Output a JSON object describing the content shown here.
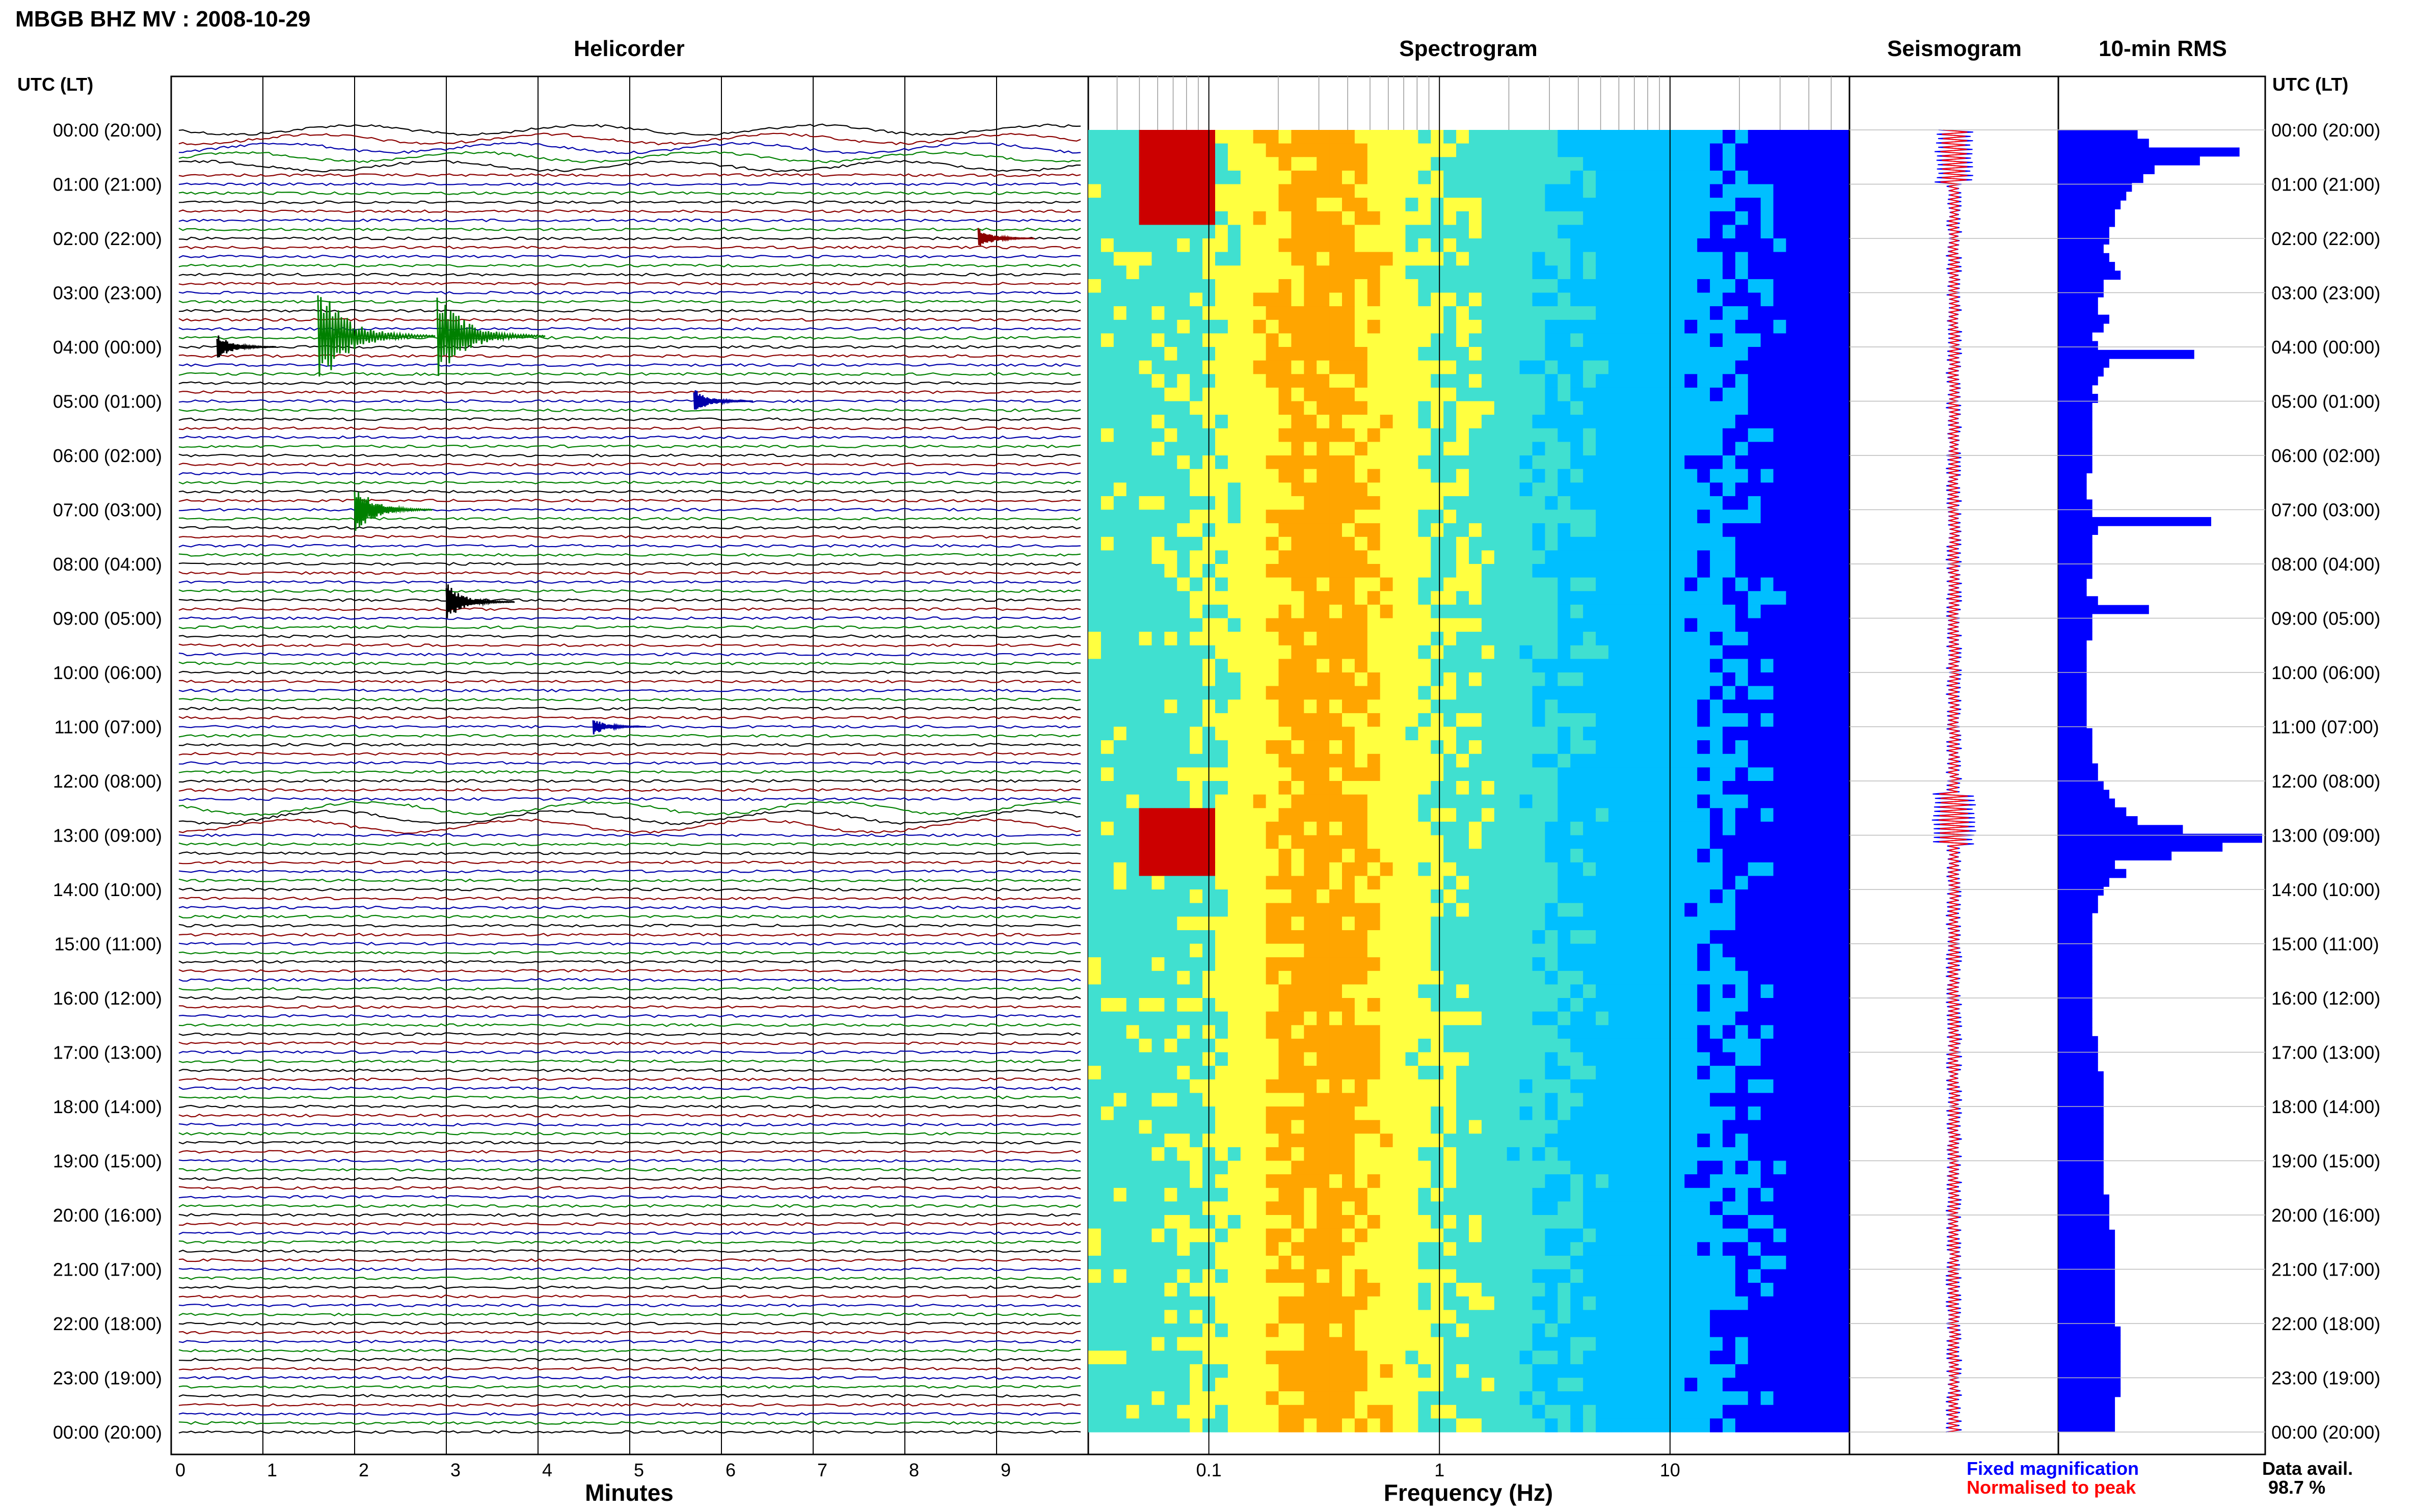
{
  "header": {
    "title": "MBGB BHZ MV : 2008-10-29"
  },
  "panels": {
    "helicorder_title": "Helicorder",
    "spectrogram_title": "Spectrogram",
    "seismogram_title": "Seismogram",
    "rms_title": "10-min RMS"
  },
  "axes": {
    "left_header": "UTC (LT)",
    "right_header": "UTC (LT)",
    "minutes_label": "Minutes",
    "frequency_label": "Frequency (Hz)",
    "time_labels": [
      "00:00 (20:00)",
      "01:00 (21:00)",
      "02:00 (22:00)",
      "03:00 (23:00)",
      "04:00 (00:00)",
      "05:00 (01:00)",
      "06:00 (02:00)",
      "07:00 (03:00)",
      "08:00 (04:00)",
      "09:00 (05:00)",
      "10:00 (06:00)",
      "11:00 (07:00)",
      "12:00 (08:00)",
      "13:00 (09:00)",
      "14:00 (10:00)",
      "15:00 (11:00)",
      "16:00 (12:00)",
      "17:00 (13:00)",
      "18:00 (14:00)",
      "19:00 (15:00)",
      "20:00 (16:00)",
      "21:00 (17:00)",
      "22:00 (18:00)",
      "23:00 (19:00)",
      "00:00 (20:00)"
    ],
    "minute_ticks": [
      "0",
      "1",
      "2",
      "3",
      "4",
      "5",
      "6",
      "7",
      "8",
      "9"
    ],
    "frequency_ticks": [
      "0.1",
      "1",
      "10"
    ]
  },
  "legend": {
    "fixed": "Fixed magnification",
    "normalised": "Normalised to peak",
    "fixed_color": "#0000ff",
    "normalised_color": "#ff0000"
  },
  "availability": {
    "label": "Data avail.",
    "value": "98.7 %"
  },
  "colors": {
    "trace_cycle": [
      "#000000",
      "#8b0000",
      "#0000aa",
      "#008000"
    ],
    "rms_bar": "#0000ff",
    "spectrogram_low": "#00008b",
    "spectrogram_high": "#cc0000"
  },
  "chart_data": [
    {
      "type": "line",
      "title": "Helicorder",
      "xlabel": "Minutes",
      "xlim": [
        0,
        10
      ],
      "traces_per_hour": 6,
      "trace_minutes": 10,
      "events": [
        {
          "hour": 2.0,
          "minute": 8.8,
          "amp": 0.5,
          "color": "#8b0000"
        },
        {
          "hour": 3.8,
          "minute": 1.6,
          "amp": 2.5,
          "color": "#008000"
        },
        {
          "hour": 3.8,
          "minute": 2.9,
          "amp": 2.2,
          "color": "#008000"
        },
        {
          "hour": 4.0,
          "minute": 0.5,
          "amp": 0.6,
          "color": "#000000"
        },
        {
          "hour": 5.0,
          "minute": 5.7,
          "amp": 0.6,
          "color": "#0000aa"
        },
        {
          "hour": 7.0,
          "minute": 2.0,
          "amp": 1.2,
          "color": "#008000"
        },
        {
          "hour": 8.7,
          "minute": 3.0,
          "amp": 0.9,
          "color": "#000000"
        },
        {
          "hour": 11.0,
          "minute": 4.6,
          "amp": 0.4,
          "color": "#0000aa"
        }
      ]
    },
    {
      "type": "heatmap",
      "title": "Spectrogram",
      "xlabel": "Frequency (Hz)",
      "x_scale": "log",
      "xlim": [
        0.03,
        60
      ],
      "ylim_hours": [
        0,
        24
      ]
    },
    {
      "type": "line",
      "title": "Seismogram",
      "series": [
        {
          "name": "Fixed magnification"
        },
        {
          "name": "Normalised to peak"
        }
      ]
    },
    {
      "type": "bar",
      "title": "10-min RMS",
      "orientation": "horizontal",
      "values": [
        14,
        16,
        32,
        25,
        17,
        15,
        13,
        12,
        11,
        10,
        10,
        9,
        9,
        8,
        9,
        10,
        11,
        8,
        8,
        7,
        7,
        9,
        8,
        6,
        7,
        24,
        9,
        8,
        7,
        6,
        7,
        6,
        6,
        6,
        6,
        6,
        6,
        6,
        6,
        5,
        5,
        5,
        6,
        6,
        27,
        7,
        6,
        6,
        6,
        6,
        6,
        5,
        5,
        7,
        16,
        6,
        6,
        6,
        5,
        5,
        5,
        5,
        5,
        5,
        5,
        5,
        5,
        5,
        6,
        6,
        6,
        6,
        7,
        7,
        8,
        9,
        10,
        12,
        14,
        22,
        36,
        29,
        20,
        10,
        12,
        9,
        8,
        7,
        7,
        6,
        6,
        6,
        6,
        6,
        6,
        6,
        6,
        6,
        6,
        6,
        6,
        6,
        6,
        7,
        7,
        7,
        7,
        8,
        8,
        8,
        8,
        8,
        8,
        8,
        8,
        8,
        8,
        8,
        8,
        8,
        8,
        9,
        9,
        9,
        9,
        10,
        10,
        10,
        10,
        10,
        10,
        10,
        10,
        10,
        10,
        10,
        11,
        11,
        11,
        11,
        11,
        11,
        11,
        11,
        10,
        10,
        10,
        10
      ]
    }
  ]
}
